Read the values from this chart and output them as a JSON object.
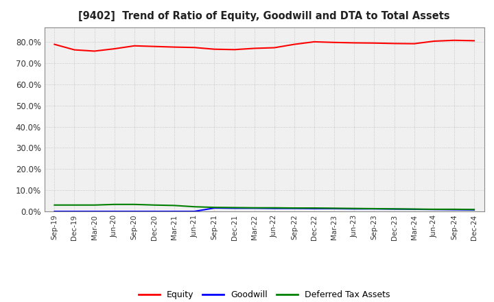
{
  "title": "[9402]  Trend of Ratio of Equity, Goodwill and DTA to Total Assets",
  "xlabels": [
    "Sep-19",
    "Dec-19",
    "Mar-20",
    "Jun-20",
    "Sep-20",
    "Dec-20",
    "Mar-21",
    "Jun-21",
    "Sep-21",
    "Dec-21",
    "Mar-22",
    "Jun-22",
    "Sep-22",
    "Dec-22",
    "Mar-23",
    "Jun-23",
    "Sep-23",
    "Dec-23",
    "Mar-24",
    "Jun-24",
    "Sep-24",
    "Dec-24"
  ],
  "equity": [
    0.789,
    0.763,
    0.757,
    0.768,
    0.782,
    0.779,
    0.776,
    0.774,
    0.766,
    0.764,
    0.77,
    0.773,
    0.789,
    0.801,
    0.798,
    0.796,
    0.795,
    0.793,
    0.792,
    0.804,
    0.808,
    0.806
  ],
  "goodwill": [
    0.0,
    0.0,
    0.0,
    0.0,
    0.0,
    0.0,
    0.0,
    0.0,
    0.016,
    0.015,
    0.015,
    0.014,
    0.014,
    0.013,
    0.013,
    0.012,
    0.012,
    0.011,
    0.01,
    0.009,
    0.008,
    0.007
  ],
  "dta": [
    0.03,
    0.03,
    0.03,
    0.033,
    0.033,
    0.03,
    0.028,
    0.022,
    0.019,
    0.018,
    0.017,
    0.017,
    0.016,
    0.016,
    0.015,
    0.014,
    0.013,
    0.012,
    0.011,
    0.01,
    0.01,
    0.009
  ],
  "equity_color": "#ff0000",
  "goodwill_color": "#0000ff",
  "dta_color": "#008000",
  "ylim": [
    0.0,
    0.87
  ],
  "yticks": [
    0.0,
    0.1,
    0.2,
    0.3,
    0.4,
    0.5,
    0.6,
    0.7,
    0.8
  ],
  "plot_bg_color": "#f0f0f0",
  "background_color": "#ffffff",
  "grid_color": "#bbbbbb",
  "legend_labels": [
    "Equity",
    "Goodwill",
    "Deferred Tax Assets"
  ]
}
